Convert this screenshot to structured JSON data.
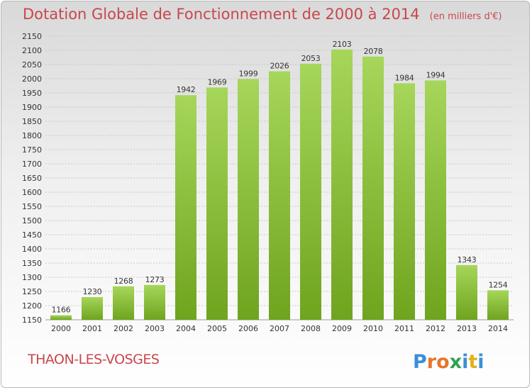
{
  "header": {
    "title": "Dotation Globale de Fonctionnement de 2000 à 2014",
    "unit": "(en milliers d'€)"
  },
  "footer": {
    "commune": "THAON-LES-VOSGES",
    "logo_text": "Proxiti",
    "logo_colors": [
      "#3a8fd6",
      "#e8742c",
      "#e8742c",
      "#2ea44f",
      "#3a8fd6",
      "#e0b21b",
      "#3a8fd6"
    ]
  },
  "colors": {
    "title": "#c8474d",
    "bar_light": "#a6d65a",
    "bar_dark": "#6fa41e",
    "grid": "#c8c8c8",
    "axis_text": "#333333"
  },
  "chart_data": {
    "type": "bar",
    "categories": [
      "2000",
      "2001",
      "2002",
      "2003",
      "2004",
      "2005",
      "2006",
      "2007",
      "2008",
      "2009",
      "2010",
      "2011",
      "2012",
      "2013",
      "2014"
    ],
    "values": [
      1166,
      1230,
      1268,
      1273,
      1942,
      1969,
      1999,
      2026,
      2053,
      2103,
      2078,
      1984,
      1994,
      1343,
      1254
    ],
    "title": "Dotation Globale de Fonctionnement de 2000 à 2014",
    "ylim": [
      1150,
      2150
    ],
    "ytick_step": 50,
    "grid": true,
    "data_labels": true
  }
}
